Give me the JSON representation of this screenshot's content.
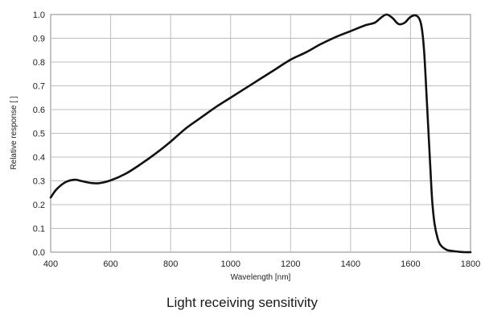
{
  "chart_data": {
    "type": "line",
    "title": "Light receiving sensitivity",
    "xlabel": "Wavelength [nm]",
    "ylabel": "Relative response [ ]",
    "xlim": [
      400,
      1800
    ],
    "ylim": [
      0,
      1.0
    ],
    "x_ticks": [
      "400",
      "600",
      "800",
      "1000",
      "1200",
      "1400",
      "1600",
      "1800"
    ],
    "y_ticks": [
      "0.0",
      "0.1",
      "0.2",
      "0.3",
      "0.4",
      "0.5",
      "0.6",
      "0.7",
      "0.8",
      "0.9",
      "1.0"
    ],
    "grid": true,
    "series": [
      {
        "color": "#111111",
        "x": [
          400,
          420,
          450,
          480,
          500,
          530,
          560,
          600,
          650,
          700,
          750,
          800,
          850,
          900,
          950,
          1000,
          1050,
          1100,
          1150,
          1200,
          1250,
          1300,
          1350,
          1400,
          1450,
          1480,
          1500,
          1520,
          1540,
          1560,
          1580,
          1600,
          1620,
          1635,
          1645,
          1655,
          1665,
          1672,
          1680,
          1690,
          1700,
          1720,
          1740,
          1760,
          1780,
          1800
        ],
        "y": [
          0.23,
          0.265,
          0.295,
          0.305,
          0.3,
          0.292,
          0.29,
          0.302,
          0.33,
          0.37,
          0.415,
          0.465,
          0.52,
          0.565,
          0.61,
          0.65,
          0.69,
          0.73,
          0.77,
          0.81,
          0.84,
          0.875,
          0.905,
          0.93,
          0.955,
          0.965,
          0.985,
          1.0,
          0.985,
          0.96,
          0.965,
          0.99,
          0.995,
          0.96,
          0.85,
          0.62,
          0.38,
          0.22,
          0.12,
          0.06,
          0.03,
          0.01,
          0.005,
          0.002,
          0.0,
          0.0
        ]
      }
    ]
  }
}
